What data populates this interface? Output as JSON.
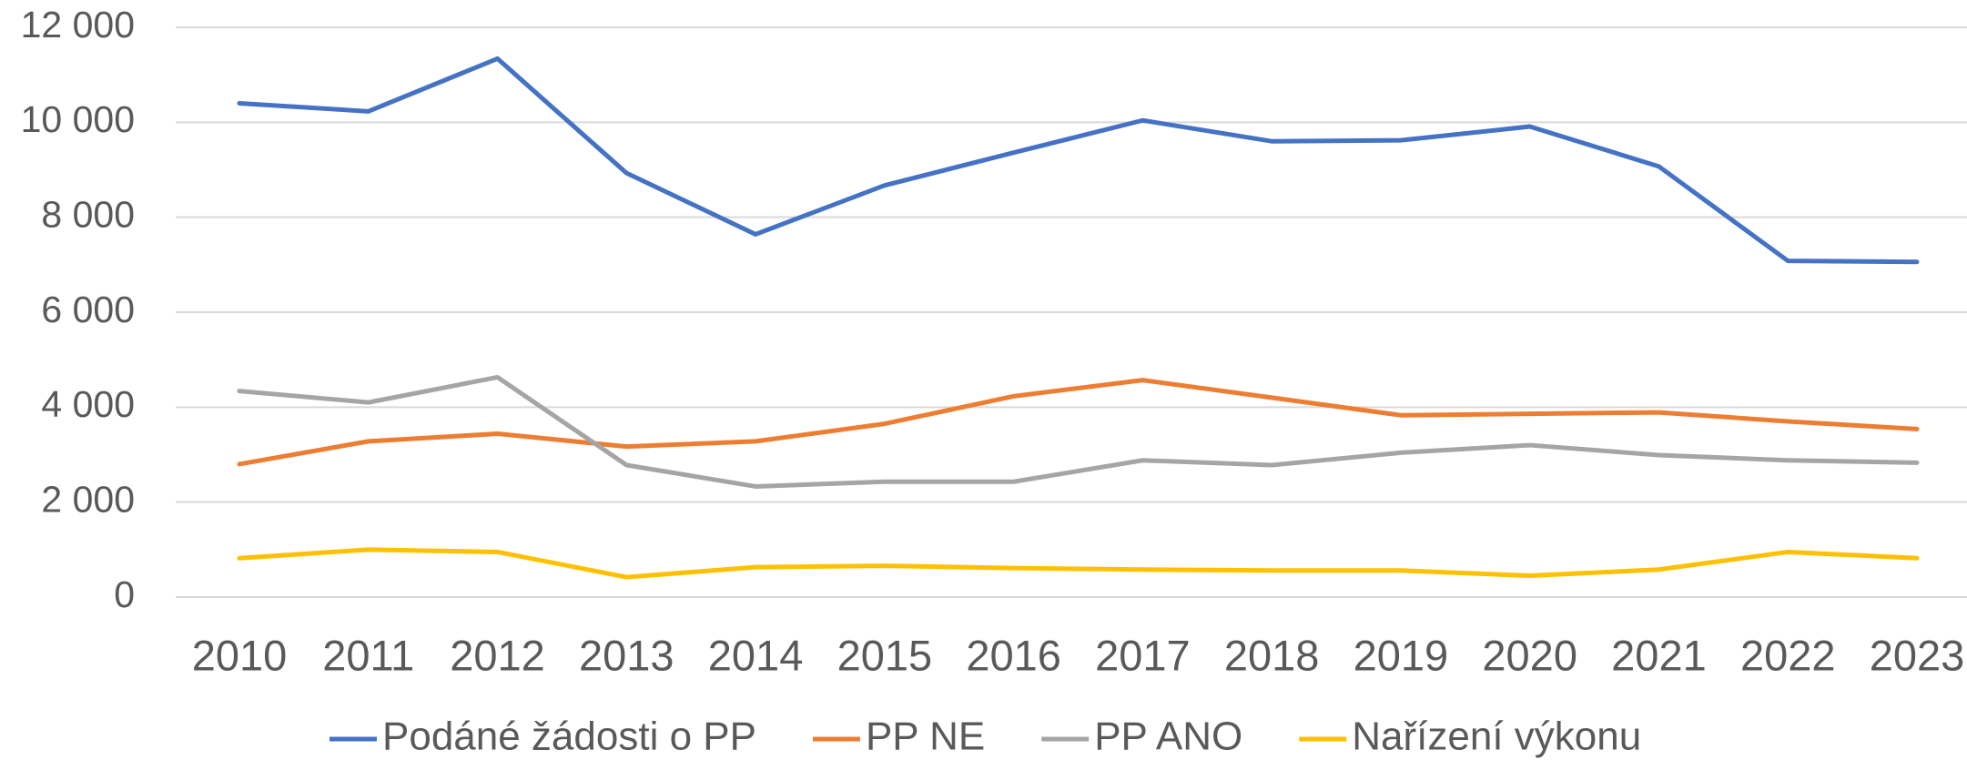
{
  "chart_data": {
    "type": "line",
    "categories": [
      "2010",
      "2011",
      "2012",
      "2013",
      "2014",
      "2015",
      "2016",
      "2017",
      "2018",
      "2019",
      "2020",
      "2021",
      "2022",
      "2023"
    ],
    "series": [
      {
        "name": "Podáné žádosti o PP",
        "color": "#4472c4",
        "values": [
          10400,
          10230,
          11340,
          8930,
          7640,
          8670,
          9360,
          10040,
          9600,
          9620,
          9910,
          9070,
          7080,
          7060
        ]
      },
      {
        "name": "PP NE",
        "color": "#ed7d31",
        "values": [
          2800,
          3280,
          3440,
          3170,
          3280,
          3650,
          4230,
          4570,
          4200,
          3830,
          3860,
          3890,
          3700,
          3540
        ]
      },
      {
        "name": "PP ANO",
        "color": "#a5a5a5",
        "values": [
          4340,
          4100,
          4630,
          2780,
          2330,
          2430,
          2430,
          2880,
          2780,
          3040,
          3200,
          2990,
          2880,
          2830
        ]
      },
      {
        "name": "Nařízení výkonu",
        "color": "#ffc000",
        "values": [
          820,
          1000,
          950,
          420,
          630,
          660,
          610,
          580,
          560,
          560,
          450,
          580,
          950,
          820
        ]
      }
    ],
    "ylim": [
      0,
      12000
    ],
    "yticks": [
      0,
      {
        "value": 2000,
        "label": "2 000"
      },
      {
        "value": 4000,
        "label": "4 000"
      },
      {
        "value": 6000,
        "label": "6 000"
      },
      {
        "value": 8000,
        "label": "8 000"
      },
      {
        "value": 10000,
        "label": "10 000"
      },
      {
        "value": 12000,
        "label": "12 000"
      }
    ],
    "grid": true,
    "legend": "bottom"
  }
}
